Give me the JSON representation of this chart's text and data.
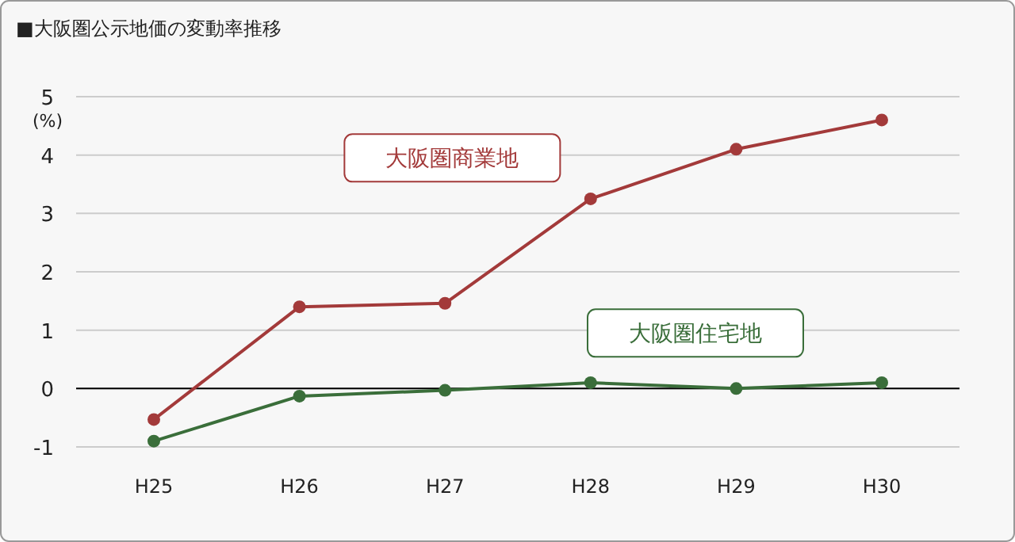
{
  "chart_data": {
    "type": "line",
    "title": "■大阪圏公示地価の変動率推移",
    "ylabel": "(%)",
    "categories": [
      "H25",
      "H26",
      "H27",
      "H28",
      "H29",
      "H30"
    ],
    "series": [
      {
        "name": "大阪圏商業地",
        "color": "#a33a3a",
        "values": [
          -0.53,
          1.4,
          1.46,
          3.25,
          4.1,
          4.6
        ]
      },
      {
        "name": "大阪圏住宅地",
        "color": "#3a6e3a",
        "values": [
          -0.9,
          -0.13,
          -0.03,
          0.1,
          0,
          0.1
        ]
      }
    ],
    "ylim": [
      -1,
      5
    ],
    "yticks": [
      -1,
      0,
      1,
      2,
      3,
      4,
      5
    ],
    "grid": "y",
    "marker": "circle",
    "line_style": "solid",
    "ref_lines": [
      {
        "axis": "y",
        "value": 0,
        "color": "#000000"
      }
    ]
  }
}
